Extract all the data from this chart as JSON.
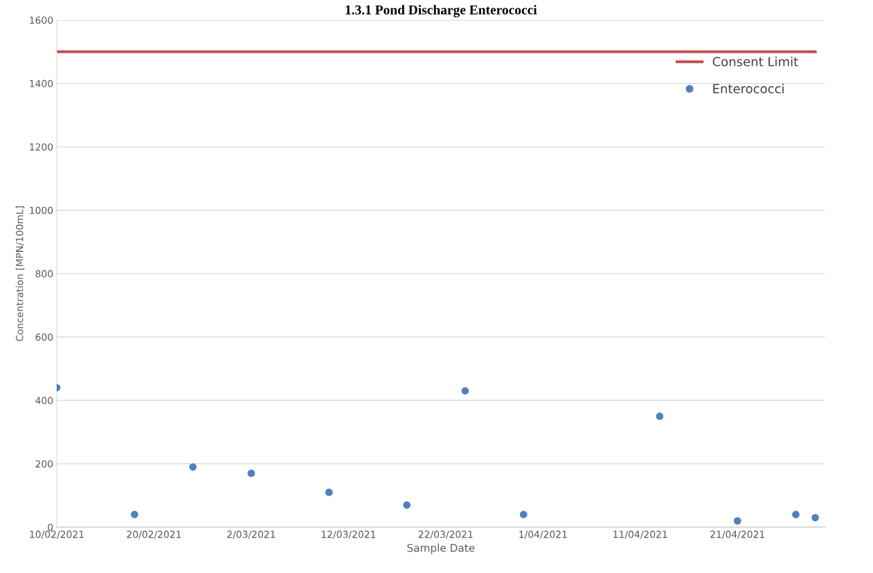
{
  "chart_data": {
    "type": "scatter",
    "title": "1.3.1 Pond Discharge Enterococci",
    "xlabel": "Sample Date",
    "ylabel": "Concentration [MPN/100mL]",
    "series": [
      {
        "name": "Consent Limit",
        "type": "line",
        "color": "#c0504d",
        "marker": "none",
        "x": [
          "2021-02-10",
          "2021-04-29"
        ],
        "values": [
          1500,
          1500
        ]
      },
      {
        "name": "Enterococci",
        "color": "#4f81bd",
        "marker": "circle",
        "x": [
          "2021-02-10",
          "2021-02-18",
          "2021-02-24",
          "2021-03-02",
          "2021-03-10",
          "2021-03-18",
          "2021-03-24",
          "2021-03-30",
          "2021-04-13",
          "2021-04-21",
          "2021-04-27",
          "2021-04-29"
        ],
        "values": [
          440,
          40,
          190,
          170,
          110,
          70,
          430,
          40,
          350,
          20,
          40,
          30
        ]
      }
    ],
    "xlim": [
      "2021-02-10",
      "2021-04-30"
    ],
    "xticks": [
      {
        "value": "2021-02-10",
        "label": "10/02/2021"
      },
      {
        "value": "2021-02-20",
        "label": "20/02/2021"
      },
      {
        "value": "2021-03-02",
        "label": "2/03/2021"
      },
      {
        "value": "2021-03-12",
        "label": "12/03/2021"
      },
      {
        "value": "2021-03-22",
        "label": "22/03/2021"
      },
      {
        "value": "2021-04-01",
        "label": "1/04/2021"
      },
      {
        "value": "2021-04-11",
        "label": "11/04/2021"
      },
      {
        "value": "2021-04-21",
        "label": "21/04/2021"
      }
    ],
    "ylim": [
      0,
      1600
    ],
    "yticks": [
      0,
      200,
      400,
      600,
      800,
      1000,
      1200,
      1400,
      1600
    ],
    "grid": "y",
    "legend": "top right"
  }
}
